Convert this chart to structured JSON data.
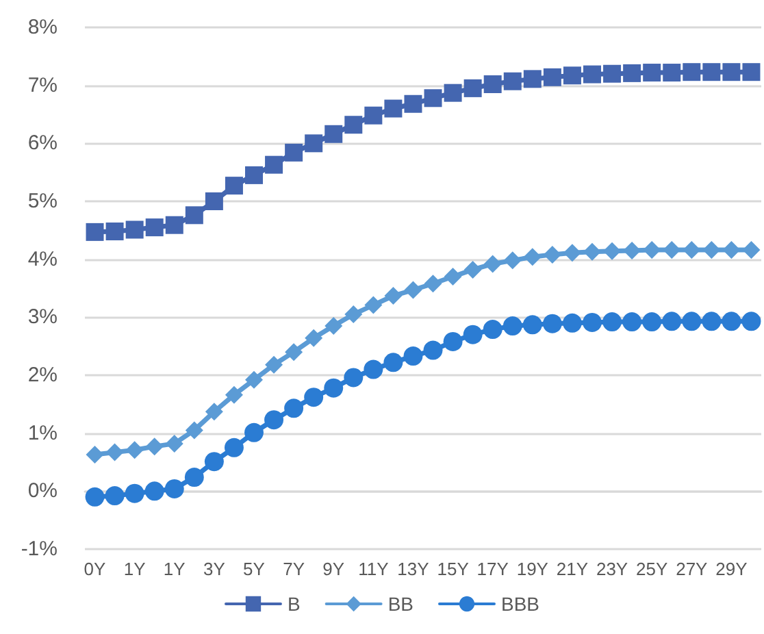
{
  "chart_data": {
    "type": "line",
    "categories": [
      "0Y",
      null,
      "1Y",
      null,
      "1Y",
      null,
      "3Y",
      null,
      "5Y",
      null,
      "7Y",
      null,
      "9Y",
      null,
      "11Y",
      null,
      "13Y",
      null,
      "15Y",
      null,
      "17Y",
      null,
      "19Y",
      null,
      "21Y",
      null,
      "23Y",
      null,
      "25Y",
      null,
      "27Y",
      null,
      "29Y",
      null
    ],
    "series": [
      {
        "name": "B",
        "color": "#4466b0",
        "marker": "square",
        "values": [
          4.47,
          4.48,
          4.51,
          4.55,
          4.59,
          4.76,
          5.0,
          5.27,
          5.45,
          5.63,
          5.84,
          6.0,
          6.16,
          6.32,
          6.48,
          6.6,
          6.68,
          6.78,
          6.87,
          6.95,
          7.02,
          7.07,
          7.11,
          7.14,
          7.17,
          7.19,
          7.2,
          7.21,
          7.22,
          7.22,
          7.23,
          7.23,
          7.23,
          7.23
        ]
      },
      {
        "name": "BB",
        "color": "#5b9bd5",
        "marker": "diamond",
        "values": [
          0.63,
          0.67,
          0.71,
          0.77,
          0.82,
          1.05,
          1.37,
          1.66,
          1.92,
          2.18,
          2.4,
          2.64,
          2.85,
          3.05,
          3.21,
          3.37,
          3.47,
          3.58,
          3.7,
          3.82,
          3.92,
          3.98,
          4.04,
          4.08,
          4.11,
          4.13,
          4.14,
          4.15,
          4.16,
          4.16,
          4.16,
          4.16,
          4.16,
          4.16
        ]
      },
      {
        "name": "BBB",
        "color": "#2b7cd3",
        "marker": "circle",
        "values": [
          -0.1,
          -0.08,
          -0.04,
          0.0,
          0.04,
          0.24,
          0.51,
          0.75,
          1.01,
          1.23,
          1.43,
          1.62,
          1.78,
          1.96,
          2.1,
          2.22,
          2.33,
          2.43,
          2.58,
          2.7,
          2.79,
          2.85,
          2.87,
          2.89,
          2.9,
          2.91,
          2.92,
          2.92,
          2.92,
          2.93,
          2.93,
          2.93,
          2.93,
          2.93
        ]
      }
    ],
    "ylim": [
      -1,
      8
    ],
    "yticks": [
      {
        "value": -1,
        "label": "-1%"
      },
      {
        "value": 0,
        "label": "0%"
      },
      {
        "value": 1,
        "label": "1%"
      },
      {
        "value": 2,
        "label": "2%"
      },
      {
        "value": 3,
        "label": "3%"
      },
      {
        "value": 4,
        "label": "4%"
      },
      {
        "value": 5,
        "label": "5%"
      },
      {
        "value": 6,
        "label": "6%"
      },
      {
        "value": 7,
        "label": "7%"
      },
      {
        "value": 8,
        "label": "8%"
      }
    ],
    "grid": "y",
    "legend": "bottom",
    "line_style": "solid"
  }
}
